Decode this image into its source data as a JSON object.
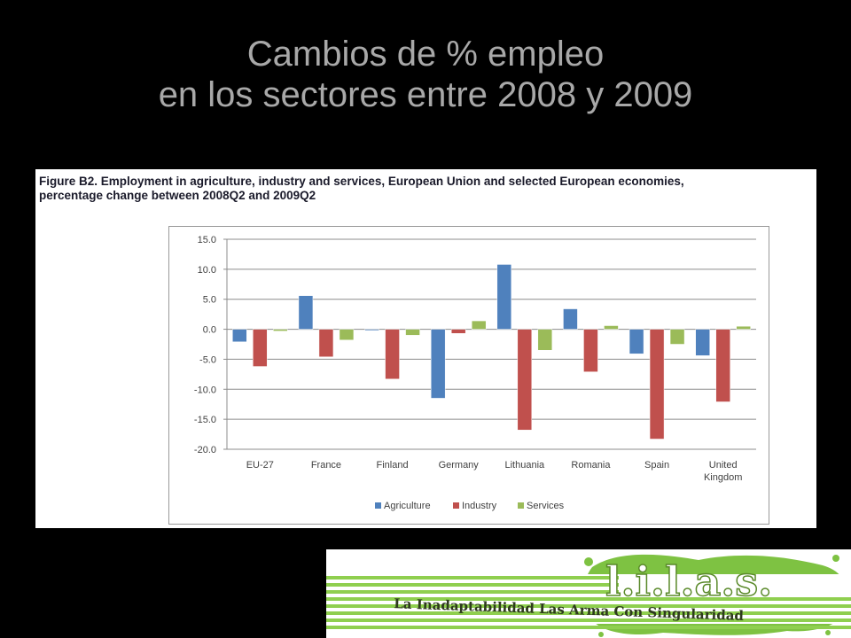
{
  "slide": {
    "title_line1": "Cambios de % empleo",
    "title_line2": "en los sectores  entre 2008 y 2009"
  },
  "figure": {
    "caption_line1": "Figure B2. Employment in agriculture, industry and services, European Union and selected European economies,",
    "caption_line2": "percentage change between 2008Q2 and 2009Q2"
  },
  "chart_data": {
    "type": "bar",
    "title": "",
    "xlabel": "",
    "ylabel": "",
    "ylim": [
      -20,
      15
    ],
    "yticks": [
      "15.0",
      "10.0",
      "5.0",
      "0.0",
      "-5.0",
      "-10.0",
      "-15.0",
      "-20.0"
    ],
    "grid": true,
    "legend_position": "bottom",
    "categories": [
      "EU-27",
      "France",
      "Finland",
      "Germany",
      "Lithuania",
      "Romania",
      "Spain",
      "United Kingdom"
    ],
    "category_lines": [
      [
        "EU-27"
      ],
      [
        "France"
      ],
      [
        "Finland"
      ],
      [
        "Germany"
      ],
      [
        "Lithuania"
      ],
      [
        "Romania"
      ],
      [
        "Spain"
      ],
      [
        "United",
        "Kingdom"
      ]
    ],
    "series": [
      {
        "name": "Agriculture",
        "color": "#4f81bd",
        "values": [
          -2.1,
          5.6,
          -0.2,
          -11.5,
          10.8,
          3.4,
          -4.1,
          -4.4
        ]
      },
      {
        "name": "Industry",
        "color": "#c0504d",
        "values": [
          -6.2,
          -4.6,
          -8.3,
          -0.7,
          -16.8,
          -7.1,
          -18.3,
          -12.1
        ]
      },
      {
        "name": "Services",
        "color": "#9bbb59",
        "values": [
          -0.3,
          -1.8,
          -1.0,
          1.4,
          -3.5,
          0.6,
          -2.5,
          0.5
        ]
      }
    ]
  },
  "logo": {
    "brand_text": "l.i.l.a.s.",
    "tagline": "La Inadaptabilidad Las Arma Con Singularidad",
    "colors": {
      "green": "#7ec242",
      "bar": "#8fcf4f",
      "text_dark": "#2e3a1e"
    }
  }
}
